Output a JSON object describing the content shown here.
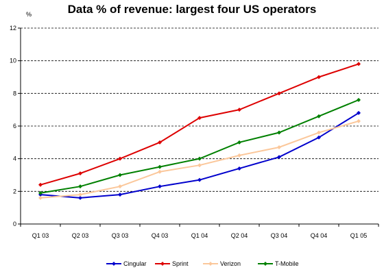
{
  "chart_data": {
    "type": "line",
    "title": "Data % of revenue: largest four US operators",
    "ylabel": "%",
    "xlabel": "",
    "ylim": [
      0,
      12
    ],
    "yticks": [
      0,
      2,
      4,
      6,
      8,
      10,
      12
    ],
    "grid": "horizontal dashed",
    "legend_position": "bottom",
    "categories": [
      "Q1 03",
      "Q2 03",
      "Q3 03",
      "Q4 03",
      "Q1 04",
      "Q2 04",
      "Q3 04",
      "Q4 04",
      "Q1 05"
    ],
    "series": [
      {
        "name": "Cingular",
        "color": "#0000cc",
        "values": [
          1.8,
          1.6,
          1.8,
          2.3,
          2.7,
          3.4,
          4.1,
          5.3,
          6.8
        ]
      },
      {
        "name": "Sprint",
        "color": "#dd0000",
        "values": [
          2.4,
          3.1,
          4.0,
          5.0,
          6.5,
          7.0,
          8.0,
          9.0,
          9.8
        ]
      },
      {
        "name": "Verizon",
        "color": "#fbc79a",
        "values": [
          1.6,
          1.8,
          2.3,
          3.2,
          3.6,
          4.2,
          4.7,
          5.6,
          6.3
        ]
      },
      {
        "name": "T-Mobile",
        "color": "#008000",
        "values": [
          1.9,
          2.3,
          3.0,
          3.5,
          4.0,
          5.0,
          5.6,
          6.6,
          7.6
        ]
      }
    ]
  }
}
